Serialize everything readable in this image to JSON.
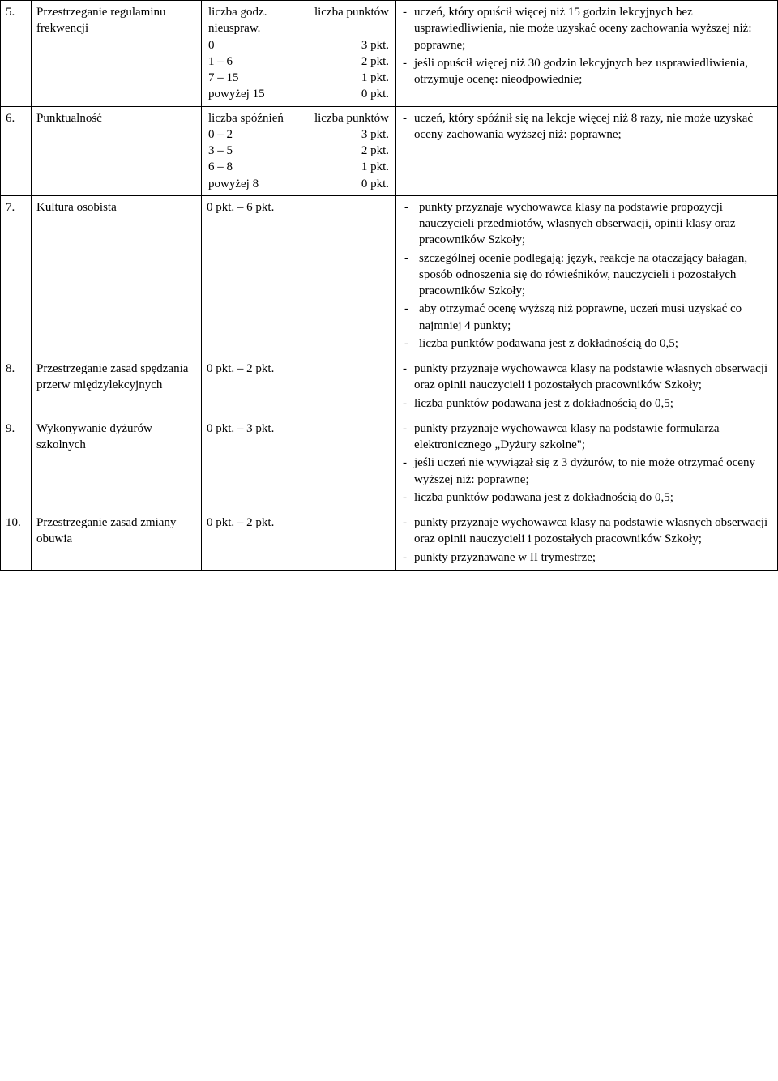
{
  "rows": [
    {
      "num": "5.",
      "criterion": "Przestrzeganie regulaminu frekwencji",
      "scale_header_left": "liczba godz. nieuspraw.",
      "scale_header_right": "liczba punktów",
      "scale_rows": [
        {
          "left": "0",
          "right": "3 pkt."
        },
        {
          "left": "1 – 6",
          "right": "2 pkt."
        },
        {
          "left": "7 – 15",
          "right": "1 pkt."
        },
        {
          "left": "powyżej 15",
          "right": "0 pkt."
        }
      ],
      "notes": [
        "uczeń, który opuścił więcej niż 15 godzin lekcyjnych bez usprawiedliwienia, nie może uzyskać oceny zachowania wyższej niż: poprawne;",
        "jeśli opuścił więcej niż 30 godzin lekcyjnych bez usprawiedliwienia, otrzymuje ocenę: nieodpowiednie;"
      ]
    },
    {
      "num": "6.",
      "criterion": "Punktualność",
      "scale_header_left": "liczba spóźnień",
      "scale_header_right": "liczba punktów",
      "scale_rows": [
        {
          "left": "0 – 2",
          "right": "3 pkt."
        },
        {
          "left": "3 – 5",
          "right": "2 pkt."
        },
        {
          "left": "6 – 8",
          "right": "1 pkt."
        },
        {
          "left": "powyżej 8",
          "right": "0 pkt."
        }
      ],
      "notes": [
        "uczeń,  który spóźnił się na lekcje więcej niż 8 razy, nie może uzyskać oceny zachowania wyższej niż: poprawne;"
      ]
    },
    {
      "num": "7.",
      "criterion": "Kultura osobista",
      "scale_text": "0 pkt. – 6 pkt.",
      "notes": [
        "punkty przyznaje wychowawca klasy na podstawie propozycji nauczycieli przedmiotów, własnych obserwacji, opinii klasy oraz pracowników Szkoły;",
        "szczególnej ocenie podlegają: język, reakcje na otaczający bałagan, sposób odnoszenia się do rówieśników, nauczycieli i pozostałych pracowników Szkoły;",
        "aby otrzymać ocenę wyższą niż poprawne, uczeń musi uzyskać co najmniej 4 punkty;",
        "liczba punktów podawana jest z dokładnością do 0,5;"
      ],
      "notes_indented": true
    },
    {
      "num": "8.",
      "criterion": "Przestrzeganie zasad spędzania przerw międzylekcyjnych",
      "scale_text": "0 pkt. – 2 pkt.",
      "notes": [
        "punkty przyznaje wychowawca klasy na podstawie własnych obserwacji oraz opinii nauczycieli i pozostałych pracowników Szkoły;",
        "liczba punktów podawana jest z dokładnością do 0,5;"
      ]
    },
    {
      "num": "9.",
      "criterion": "Wykonywanie dyżurów szkolnych",
      "scale_text": "0 pkt. – 3 pkt.",
      "notes": [
        "punkty przyznaje wychowawca klasy na podstawie formularza elektronicznego „Dyżury szkolne\";",
        "jeśli uczeń nie wywiązał się z 3 dyżurów, to nie może otrzymać oceny wyższej niż: poprawne;",
        "liczba punktów podawana jest z dokładnością do 0,5;"
      ],
      "last_justify": true
    },
    {
      "num": "10.",
      "criterion": "Przestrzeganie zasad zmiany obuwia",
      "scale_text": "0 pkt. – 2 pkt.",
      "notes": [
        "punkty przyznaje wychowawca klasy na podstawie własnych obserwacji oraz opinii nauczycieli i pozostałych pracowników Szkoły;",
        "punkty przyznawane w II trymestrze;"
      ]
    }
  ]
}
